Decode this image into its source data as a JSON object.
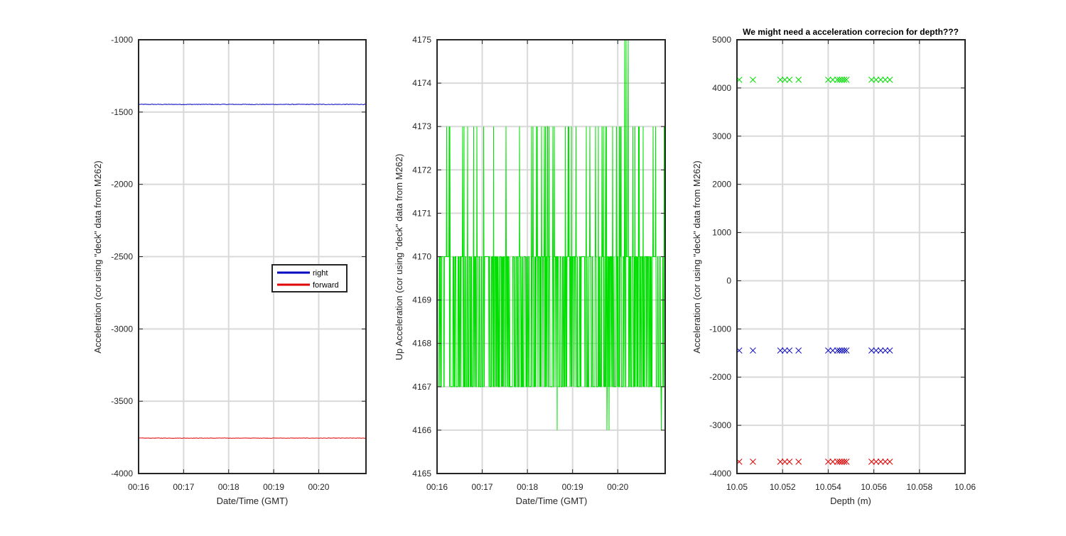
{
  "chart_data": [
    {
      "type": "line",
      "xlabel": "Date/Time (GMT)",
      "ylabel": "Acceleration (cor using \"deck\" data from M262)",
      "xticks": [
        "00:16",
        "00:17",
        "00:18",
        "00:19",
        "00:20"
      ],
      "xlim_minutes": [
        16,
        21.05
      ],
      "ylim": [
        -4000,
        -1000
      ],
      "yticks": [
        -1000,
        -1500,
        -2000,
        -2500,
        -3000,
        -3500,
        -4000
      ],
      "grid": true,
      "legend": {
        "position": "center-right",
        "entries": [
          "right",
          "forward"
        ]
      },
      "series": [
        {
          "name": "right",
          "color": "#0000c0",
          "level": -1447,
          "noise": 4
        },
        {
          "name": "forward",
          "color": "#e00000",
          "level": -3755,
          "noise": 3
        }
      ]
    },
    {
      "type": "line",
      "xlabel": "Date/Time (GMT)",
      "ylabel": "Up Acceleration (cor using \"deck\" data from M262)",
      "xticks": [
        "00:16",
        "00:17",
        "00:18",
        "00:19",
        "00:20"
      ],
      "xlim_minutes": [
        16,
        21.05
      ],
      "ylim": [
        4165,
        4175
      ],
      "yticks": [
        4165,
        4166,
        4167,
        4168,
        4169,
        4170,
        4171,
        4172,
        4173,
        4174,
        4175
      ],
      "grid": true,
      "series": [
        {
          "color": "#00e000",
          "values_observed": [
            4166,
            4167,
            4170,
            4173,
            4175
          ],
          "band_low": 4167,
          "band_high": 4170
        }
      ]
    },
    {
      "type": "scatter",
      "title": "We might need a acceleration correcion for depth???",
      "xlabel": "Depth (m)",
      "ylabel": "Acceleration (cor using \"deck\" data from M262)",
      "xticks": [
        "10.05",
        "10.052",
        "10.054",
        "10.056",
        "10.058",
        "10.06"
      ],
      "xlim": [
        10.05,
        10.06
      ],
      "ylim": [
        -4000,
        5000
      ],
      "yticks": [
        5000,
        4000,
        3000,
        2000,
        1000,
        0,
        -1000,
        -2000,
        -3000,
        -4000
      ],
      "grid": true,
      "marker": "x",
      "x": [
        10.0501,
        10.0507,
        10.0519,
        10.0521,
        10.0523,
        10.0527,
        10.054,
        10.0542,
        10.0544,
        10.0545,
        10.0546,
        10.0547,
        10.0548,
        10.0559,
        10.0561,
        10.0563,
        10.0565,
        10.0567
      ],
      "series": [
        {
          "color": "#00e000",
          "value": 4170
        },
        {
          "color": "#0000c0",
          "value": -1447
        },
        {
          "color": "#e00000",
          "value": -3755
        }
      ]
    }
  ]
}
